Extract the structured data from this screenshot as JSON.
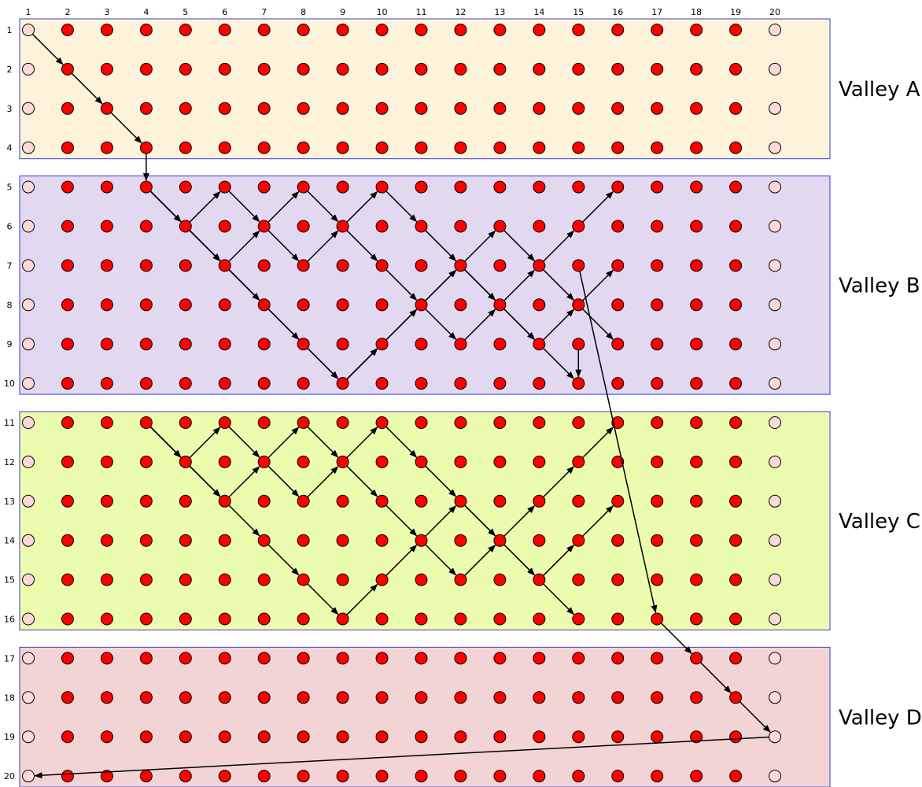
{
  "column_labels": [
    "1",
    "2",
    "3",
    "4",
    "5",
    "6",
    "7",
    "8",
    "9",
    "10",
    "11",
    "12",
    "13",
    "14",
    "15",
    "16",
    "17",
    "18",
    "19",
    "20"
  ],
  "row_labels": [
    "1",
    "2",
    "3",
    "4",
    "5",
    "6",
    "7",
    "8",
    "9",
    "10",
    "11",
    "12",
    "13",
    "14",
    "15",
    "16",
    "17",
    "18",
    "19",
    "20"
  ],
  "valleys": [
    {
      "label": "Valley A",
      "rows": [
        1,
        4
      ],
      "color": "#fdf3da"
    },
    {
      "label": "Valley B",
      "rows": [
        5,
        10
      ],
      "color": "#e2d8f0"
    },
    {
      "label": "Valley C",
      "rows": [
        11,
        16
      ],
      "color": "#ecfcae"
    },
    {
      "label": "Valley D",
      "rows": [
        17,
        20
      ],
      "color": "#f2d4d4"
    }
  ],
  "colors": {
    "active_node": "#ff0000",
    "boundary_node": "#ffd8d8",
    "arrow": "#000000",
    "band_border": "#3a3ad8"
  },
  "boundary_columns": [
    1,
    20
  ],
  "paths": [
    [
      [
        1,
        1
      ],
      [
        2,
        2
      ],
      [
        3,
        3
      ],
      [
        4,
        4
      ]
    ],
    [
      [
        4,
        4
      ],
      [
        5,
        4
      ],
      [
        6,
        5
      ],
      [
        7,
        6
      ],
      [
        8,
        7
      ],
      [
        9,
        8
      ],
      [
        10,
        9
      ],
      [
        9,
        10
      ],
      [
        8,
        11
      ],
      [
        7,
        12
      ],
      [
        6,
        13
      ],
      [
        7,
        14
      ],
      [
        8,
        15
      ],
      [
        9,
        16
      ]
    ],
    [
      [
        5,
        4
      ],
      [
        6,
        5
      ],
      [
        5,
        6
      ],
      [
        6,
        7
      ],
      [
        7,
        8
      ],
      [
        6,
        9
      ],
      [
        5,
        10
      ],
      [
        6,
        11
      ],
      [
        7,
        12
      ],
      [
        8,
        13
      ],
      [
        9,
        14
      ],
      [
        8,
        15
      ],
      [
        7,
        16
      ]
    ],
    [
      [
        5,
        4
      ],
      [
        6,
        5
      ],
      [
        7,
        6
      ],
      [
        6,
        7
      ],
      [
        5,
        8
      ],
      [
        6,
        9
      ],
      [
        7,
        10
      ],
      [
        8,
        11
      ],
      [
        9,
        12
      ],
      [
        8,
        13
      ],
      [
        7,
        14
      ],
      [
        6,
        15
      ],
      [
        5,
        16
      ]
    ],
    [
      [
        5,
        4
      ],
      [
        6,
        5
      ],
      [
        7,
        6
      ],
      [
        8,
        7
      ],
      [
        9,
        8
      ],
      [
        10,
        9
      ],
      [
        9,
        10
      ],
      [
        8,
        11
      ],
      [
        7,
        12
      ],
      [
        8,
        13
      ],
      [
        9,
        14
      ],
      [
        10,
        15
      ]
    ],
    [
      [
        9,
        15
      ],
      [
        10,
        15
      ]
    ],
    [
      [
        11,
        4
      ],
      [
        12,
        5
      ],
      [
        11,
        6
      ],
      [
        12,
        7
      ],
      [
        13,
        8
      ],
      [
        12,
        9
      ],
      [
        11,
        10
      ],
      [
        12,
        11
      ],
      [
        13,
        12
      ],
      [
        14,
        13
      ],
      [
        15,
        14
      ],
      [
        14,
        15
      ],
      [
        13,
        16
      ]
    ],
    [
      [
        11,
        4
      ],
      [
        12,
        5
      ],
      [
        13,
        6
      ],
      [
        12,
        7
      ],
      [
        11,
        8
      ],
      [
        12,
        9
      ],
      [
        13,
        10
      ],
      [
        14,
        11
      ],
      [
        15,
        12
      ],
      [
        14,
        13
      ],
      [
        13,
        14
      ],
      [
        12,
        15
      ],
      [
        11,
        16
      ]
    ],
    [
      [
        11,
        4
      ],
      [
        12,
        5
      ],
      [
        13,
        6
      ],
      [
        14,
        7
      ],
      [
        15,
        8
      ],
      [
        16,
        9
      ],
      [
        15,
        10
      ],
      [
        14,
        11
      ],
      [
        13,
        12
      ],
      [
        14,
        13
      ],
      [
        15,
        14
      ],
      [
        16,
        15
      ]
    ],
    [
      [
        10,
        9
      ],
      [
        9,
        10
      ]
    ],
    [
      [
        7,
        15
      ],
      [
        16,
        17
      ],
      [
        17,
        18
      ],
      [
        18,
        19
      ],
      [
        19,
        20
      ],
      [
        20,
        1
      ]
    ]
  ]
}
